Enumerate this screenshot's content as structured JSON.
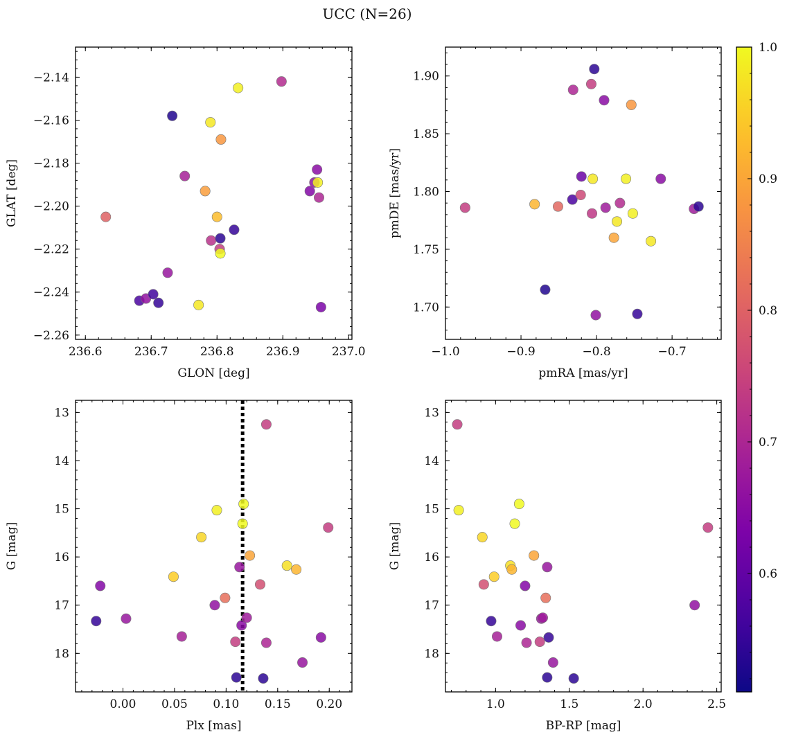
{
  "title": "UCC (N=26)",
  "colorbar": {
    "cmap": "plasma",
    "vmin": 0.51,
    "vmax": 1.0,
    "ticks": [
      0.6,
      0.7,
      0.8,
      0.9,
      1.0
    ],
    "tick_labels": [
      "0.6",
      "0.7",
      "0.8",
      "0.9",
      "1.0"
    ],
    "label": ""
  },
  "chart_data": [
    {
      "type": "scatter",
      "xlabel": "GLON [deg]",
      "ylabel": "GLAT [deg]",
      "xlim": [
        236.585,
        237.005
      ],
      "ylim": [
        -2.262,
        -2.126
      ],
      "y_inverted": false,
      "xticks": [
        236.6,
        236.7,
        236.8,
        236.9,
        237.0
      ],
      "xtick_labels": [
        "236.6",
        "236.7",
        "236.8",
        "236.9",
        "237.0"
      ],
      "yticks": [
        -2.26,
        -2.24,
        -2.22,
        -2.2,
        -2.18,
        -2.16,
        -2.14
      ],
      "ytick_labels": [
        "−2.26",
        "−2.24",
        "−2.22",
        "−2.20",
        "−2.18",
        "−2.16",
        "−2.14"
      ],
      "x": [
        236.631,
        236.682,
        236.692,
        236.703,
        236.711,
        236.725,
        236.732,
        236.751,
        236.772,
        236.782,
        236.79,
        236.791,
        236.8,
        236.804,
        236.805,
        236.805,
        236.806,
        236.826,
        236.832,
        236.898,
        236.941,
        236.948,
        236.952,
        236.953,
        236.955,
        236.958
      ],
      "y": [
        -2.205,
        -2.244,
        -2.243,
        -2.241,
        -2.245,
        -2.231,
        -2.158,
        -2.186,
        -2.246,
        -2.193,
        -2.161,
        -2.216,
        -2.205,
        -2.22,
        -2.215,
        -2.222,
        -2.169,
        -2.211,
        -2.145,
        -2.142,
        -2.193,
        -2.189,
        -2.183,
        -2.189,
        -2.196,
        -2.247
      ],
      "c": [
        0.8,
        0.57,
        0.66,
        0.56,
        0.55,
        0.67,
        0.53,
        0.69,
        0.98,
        0.89,
        0.98,
        0.72,
        0.93,
        0.74,
        0.54,
        1.0,
        0.88,
        0.55,
        0.99,
        0.71,
        0.64,
        0.66,
        0.65,
        0.99,
        0.7,
        0.63
      ]
    },
    {
      "type": "scatter",
      "xlabel": "pmRA [mas/yr]",
      "ylabel": "pmDE [mas/yr]",
      "xlim": [
        -1.0,
        -0.635
      ],
      "ylim": [
        1.672,
        1.925
      ],
      "y_inverted": false,
      "xticks": [
        -1.0,
        -0.9,
        -0.8,
        -0.7
      ],
      "xtick_labels": [
        "−1.0",
        "−0.9",
        "−0.8",
        "−0.7"
      ],
      "yticks": [
        1.7,
        1.75,
        1.8,
        1.85,
        1.9
      ],
      "ytick_labels": [
        "1.70",
        "1.75",
        "1.80",
        "1.85",
        "1.90"
      ],
      "x": [
        -0.974,
        -0.882,
        -0.868,
        -0.851,
        -0.832,
        -0.831,
        -0.821,
        -0.82,
        -0.807,
        -0.806,
        -0.805,
        -0.803,
        -0.801,
        -0.79,
        -0.788,
        -0.777,
        -0.773,
        -0.769,
        -0.761,
        -0.754,
        -0.752,
        -0.746,
        -0.728,
        -0.715,
        -0.671,
        -0.665
      ],
      "y": [
        1.786,
        1.789,
        1.715,
        1.787,
        1.793,
        1.888,
        1.797,
        1.813,
        1.893,
        1.781,
        1.811,
        1.906,
        1.693,
        1.879,
        1.786,
        1.76,
        1.774,
        1.79,
        1.811,
        1.875,
        1.781,
        1.694,
        1.757,
        1.811,
        1.785,
        1.787
      ],
      "c": [
        0.74,
        0.92,
        0.53,
        0.81,
        0.57,
        0.7,
        0.76,
        0.61,
        0.74,
        0.73,
        0.98,
        0.54,
        0.66,
        0.65,
        0.68,
        0.9,
        0.98,
        0.71,
        0.99,
        0.88,
        0.99,
        0.55,
        0.98,
        0.65,
        0.68,
        0.54
      ]
    },
    {
      "type": "scatter",
      "xlabel": "Plx [mas]",
      "ylabel": "G [mag]",
      "xlim": [
        -0.046,
        0.222
      ],
      "ylim": [
        18.8,
        12.75
      ],
      "y_inverted": true,
      "vline": 0.116,
      "xticks": [
        0.0,
        0.05,
        0.1,
        0.15,
        0.2
      ],
      "xtick_labels": [
        "0.00",
        "0.05",
        "0.10",
        "0.15",
        "0.20"
      ],
      "yticks": [
        13,
        14,
        15,
        16,
        17,
        18
      ],
      "ytick_labels": [
        "13",
        "14",
        "15",
        "16",
        "17",
        "18"
      ],
      "x": [
        -0.026,
        -0.022,
        0.003,
        0.049,
        0.057,
        0.076,
        0.089,
        0.091,
        0.099,
        0.109,
        0.11,
        0.113,
        0.115,
        0.116,
        0.117,
        0.12,
        0.123,
        0.133,
        0.136,
        0.139,
        0.139,
        0.159,
        0.168,
        0.174,
        0.192,
        0.199
      ],
      "y": [
        17.33,
        16.6,
        17.28,
        16.41,
        17.65,
        15.59,
        17.0,
        15.03,
        16.85,
        17.76,
        18.5,
        16.21,
        17.42,
        15.31,
        14.9,
        17.26,
        15.97,
        16.57,
        18.52,
        13.25,
        17.78,
        16.18,
        16.26,
        18.19,
        17.67,
        15.39
      ],
      "c": [
        0.55,
        0.64,
        0.67,
        0.95,
        0.69,
        0.96,
        0.66,
        0.99,
        0.82,
        0.74,
        0.54,
        0.67,
        0.65,
        1.0,
        1.0,
        0.68,
        0.9,
        0.77,
        0.54,
        0.74,
        0.7,
        0.97,
        0.92,
        0.67,
        0.65,
        0.74
      ]
    },
    {
      "type": "scatter",
      "xlabel": "BP-RP [mag]",
      "ylabel": "G [mag]",
      "xlim": [
        0.66,
        2.53
      ],
      "ylim": [
        18.8,
        12.75
      ],
      "y_inverted": true,
      "xticks": [
        1.0,
        1.5,
        2.0,
        2.5
      ],
      "xtick_labels": [
        "1.0",
        "1.5",
        "2.0",
        "2.5"
      ],
      "yticks": [
        13,
        14,
        15,
        16,
        17,
        18
      ],
      "ytick_labels": [
        "13",
        "14",
        "15",
        "16",
        "17",
        "18"
      ],
      "x": [
        0.74,
        0.75,
        0.91,
        0.92,
        0.97,
        0.99,
        1.01,
        1.1,
        1.11,
        1.13,
        1.16,
        1.17,
        1.2,
        1.21,
        1.26,
        1.3,
        1.31,
        1.32,
        1.34,
        1.35,
        1.35,
        1.36,
        1.39,
        1.53,
        2.35,
        2.44
      ],
      "y": [
        13.25,
        15.03,
        15.59,
        16.57,
        17.33,
        16.41,
        17.65,
        16.18,
        16.26,
        15.31,
        14.9,
        17.42,
        16.6,
        17.78,
        15.97,
        17.76,
        17.28,
        17.26,
        16.85,
        18.5,
        16.21,
        17.67,
        18.19,
        18.52,
        17.0,
        15.39
      ],
      "c": [
        0.74,
        0.99,
        0.96,
        0.77,
        0.55,
        0.95,
        0.69,
        0.97,
        0.92,
        1.0,
        1.0,
        0.65,
        0.64,
        0.7,
        0.9,
        0.74,
        0.67,
        0.68,
        0.82,
        0.54,
        0.67,
        0.55,
        0.67,
        0.54,
        0.66,
        0.74
      ]
    }
  ]
}
